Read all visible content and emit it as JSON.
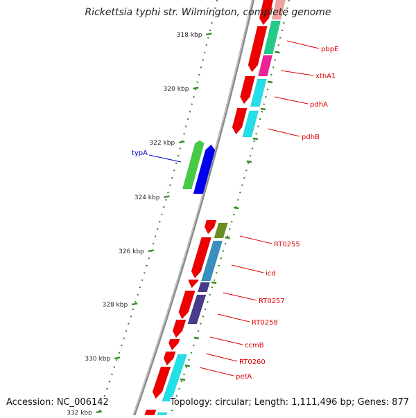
{
  "title": "Rickettsia typhi str. Wilmington, complete genome",
  "footer": {
    "accession_label": "Accession:",
    "accession": "NC_006142",
    "topology_label": "Topology:",
    "topology": "circular",
    "length_label": "Length:",
    "length": "1,111,496 bp",
    "genes_label": "Genes:",
    "genes": "877"
  },
  "scale_ticks": [
    {
      "label": "318 kbp"
    },
    {
      "label": "320 kbp"
    },
    {
      "label": "322 kbp"
    },
    {
      "label": "324 kbp"
    },
    {
      "label": "326 kbp"
    },
    {
      "label": "328 kbp"
    },
    {
      "label": "330 kbp"
    },
    {
      "label": "332 kbp"
    }
  ],
  "gene_labels": {
    "forward": [
      "pbpE",
      "xthA1",
      "pdhA",
      "pdhB",
      "RT0255",
      "icd",
      "RT0257",
      "RT0258",
      "ccmB",
      "RT0260",
      "petA"
    ],
    "reverse": [
      "typA"
    ]
  },
  "colors": {
    "backbone": "#8a8a8a",
    "tick": "#2e8b22",
    "cds": "#ee0000",
    "forward_label": "#dd0000",
    "reverse_label": "#0000cc",
    "cyan": "#22e0e8",
    "green": "#22cc88",
    "magenta": "#ee2299",
    "olive": "#6b8e23",
    "steel": "#3a8fbf",
    "purple": "#4a3a8c",
    "cog_green": "#44cc44",
    "cog_blue": "#0000ee"
  }
}
